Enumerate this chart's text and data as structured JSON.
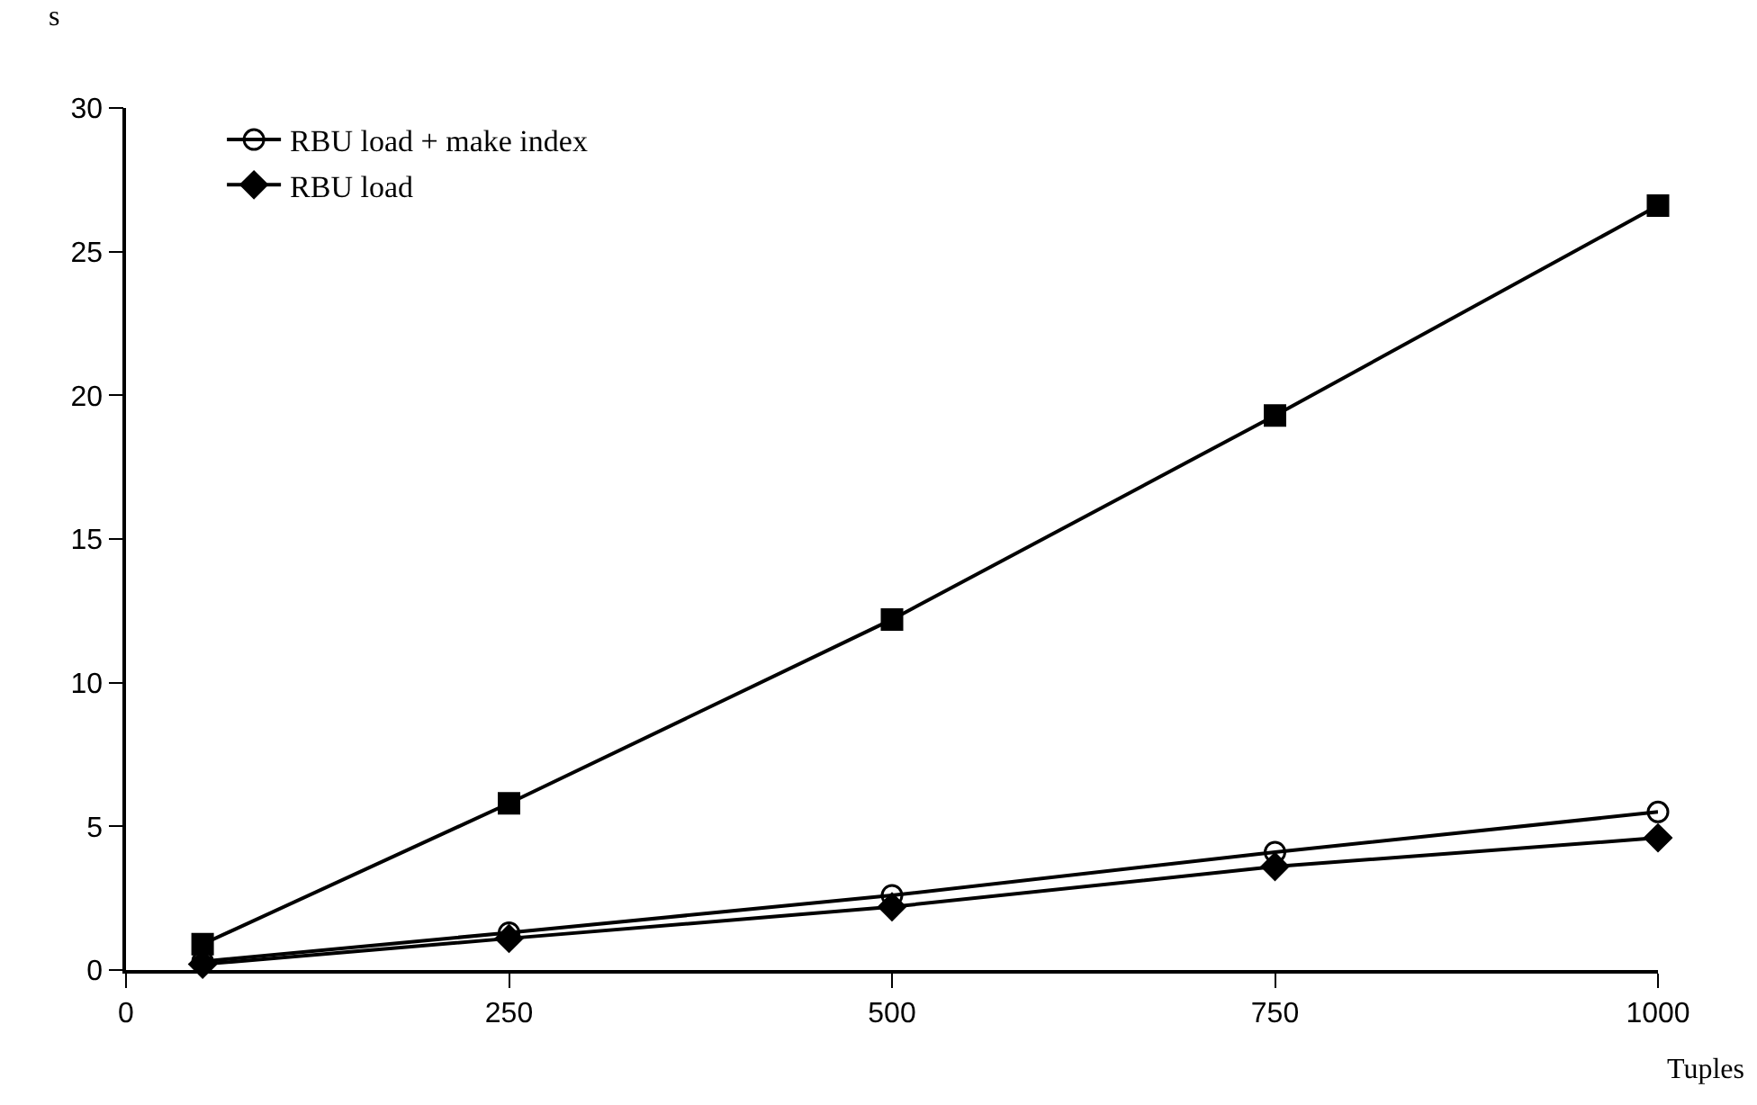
{
  "chart_data": {
    "type": "line",
    "ylabel": "s",
    "xlabel": "Tuples",
    "x": [
      50,
      250,
      500,
      750,
      1000
    ],
    "series": [
      {
        "color": "#000000",
        "marker": "square",
        "values": [
          0.9,
          5.8,
          12.2,
          19.3,
          26.6
        ]
      },
      {
        "name": "RBU load + make index",
        "color": "#000000",
        "marker": "circle",
        "values": [
          0.3,
          1.3,
          2.6,
          4.1,
          5.5
        ]
      },
      {
        "name": "RBU load",
        "color": "#000000",
        "marker": "diamond",
        "values": [
          0.2,
          1.1,
          2.2,
          3.6,
          4.6
        ]
      }
    ],
    "xlim": [
      0,
      1000
    ],
    "xticks": [
      0,
      250,
      500,
      750,
      1000
    ],
    "ylim": [
      0,
      30
    ],
    "yticks": [
      0,
      5,
      10,
      15,
      20,
      25,
      30
    ],
    "legend": "top left",
    "line_style": "solid"
  }
}
